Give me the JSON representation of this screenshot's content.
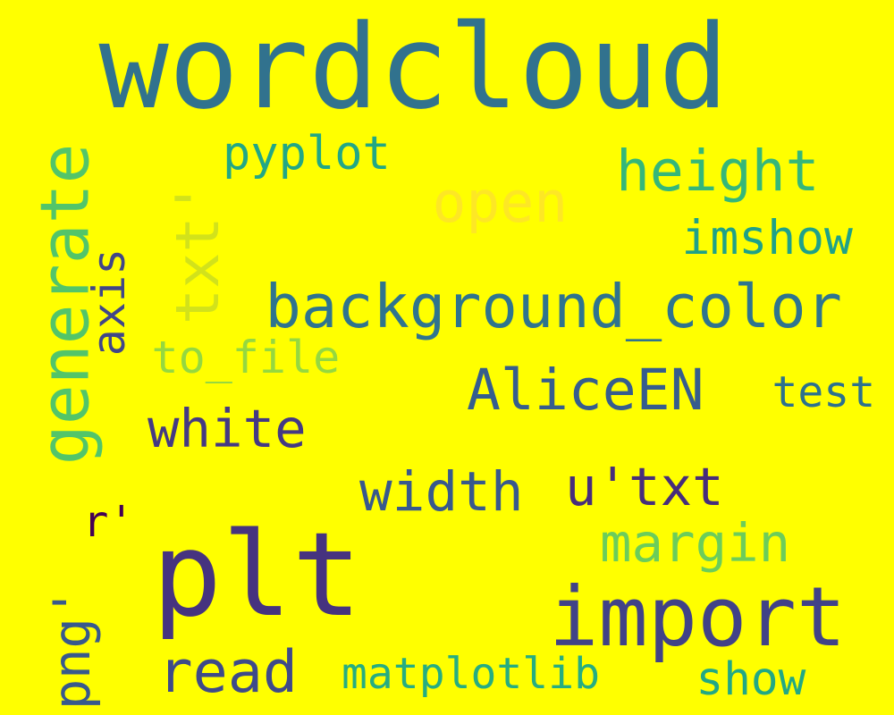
{
  "canvas": {
    "background": "#ffff00"
  },
  "words": [
    {
      "id": "wordcloud",
      "text": "wordcloud",
      "color": "#31728e",
      "orientation": "horizontal"
    },
    {
      "id": "plt",
      "text": "plt",
      "color": "#46337f",
      "orientation": "horizontal"
    },
    {
      "id": "import",
      "text": "import",
      "color": "#414287",
      "orientation": "horizontal"
    },
    {
      "id": "background_color",
      "text": "background_color",
      "color": "#2f748e",
      "orientation": "horizontal"
    },
    {
      "id": "AliceEN",
      "text": "AliceEN",
      "color": "#365d8d",
      "orientation": "horizontal"
    },
    {
      "id": "white",
      "text": "white",
      "color": "#443983",
      "orientation": "horizontal"
    },
    {
      "id": "width",
      "text": "width",
      "color": "#38598c",
      "orientation": "horizontal"
    },
    {
      "id": "u_txt",
      "text": "u'txt",
      "color": "#472d7b",
      "orientation": "horizontal"
    },
    {
      "id": "height",
      "text": "height",
      "color": "#35b779",
      "orientation": "horizontal"
    },
    {
      "id": "open",
      "text": "open",
      "color": "#fde725",
      "orientation": "horizontal"
    },
    {
      "id": "pyplot",
      "text": "pyplot",
      "color": "#22a785",
      "orientation": "horizontal"
    },
    {
      "id": "imshow",
      "text": "imshow",
      "color": "#1fa188",
      "orientation": "horizontal"
    },
    {
      "id": "margin",
      "text": "margin",
      "color": "#6ccd5a",
      "orientation": "horizontal"
    },
    {
      "id": "read",
      "text": "read",
      "color": "#3e4a89",
      "orientation": "horizontal"
    },
    {
      "id": "matplotlib",
      "text": "matplotlib",
      "color": "#26ad81",
      "orientation": "horizontal"
    },
    {
      "id": "show",
      "text": "show",
      "color": "#22a884",
      "orientation": "horizontal"
    },
    {
      "id": "test",
      "text": "test",
      "color": "#2c718e",
      "orientation": "horizontal"
    },
    {
      "id": "to_file",
      "text": "to_file",
      "color": "#95d840",
      "orientation": "horizontal"
    },
    {
      "id": "generate",
      "text": "generate",
      "color": "#52c569",
      "orientation": "vertical"
    },
    {
      "id": "txt",
      "text": "txt'",
      "color": "#d2e21b",
      "orientation": "vertical"
    },
    {
      "id": "axis",
      "text": "axis",
      "color": "#404688",
      "orientation": "vertical"
    },
    {
      "id": "r",
      "text": "r'",
      "color": "#440154",
      "orientation": "horizontal"
    },
    {
      "id": "png",
      "text": "png'",
      "color": "#38598c",
      "orientation": "vertical"
    }
  ]
}
